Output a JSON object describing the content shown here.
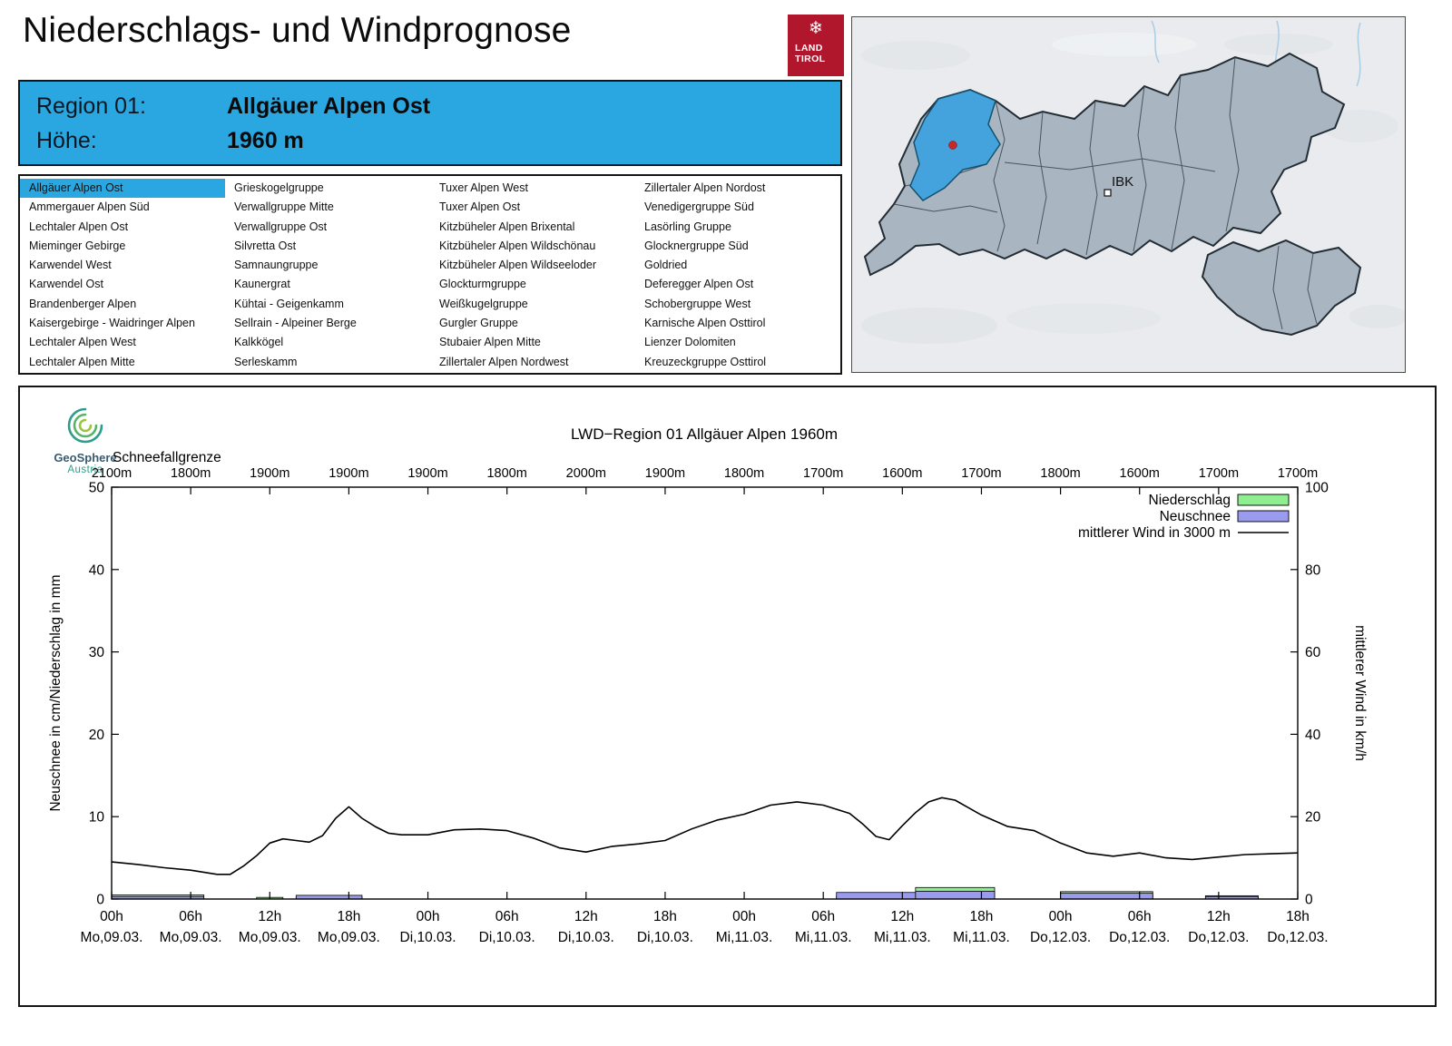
{
  "page": {
    "title": "Niederschlags- und Windprognose"
  },
  "logo": {
    "line1": "LAND",
    "line2": "TIROL"
  },
  "map": {
    "ibk_label": "IBK"
  },
  "region_header": {
    "region_label": "Region 01:",
    "region_value": "Allgäuer Alpen Ost",
    "hoehe_label": "Höhe:",
    "hoehe_value": "1960 m"
  },
  "region_list": {
    "selected": "Allgäuer Alpen Ost",
    "columns": [
      [
        "Allgäuer Alpen Ost",
        "Ammergauer Alpen Süd",
        "Lechtaler Alpen Ost",
        "Mieminger Gebirge",
        "Karwendel West",
        "Karwendel Ost",
        "Brandenberger Alpen",
        "Kaisergebirge - Waidringer Alpen",
        "Lechtaler Alpen West",
        "Lechtaler Alpen Mitte"
      ],
      [
        "Grieskogelgruppe",
        "Verwallgruppe Mitte",
        "Verwallgruppe Ost",
        "Silvretta Ost",
        "Samnaungruppe",
        "Kaunergrat",
        "Kühtai - Geigenkamm",
        "Sellrain - Alpeiner Berge",
        "Kalkkögel",
        "Serleskamm"
      ],
      [
        "Tuxer Alpen West",
        "Tuxer Alpen Ost",
        "Kitzbüheler Alpen Brixental",
        "Kitzbüheler Alpen Wildschönau",
        "Kitzbüheler Alpen Wildseeloder",
        "Glockturmgruppe",
        "Weißkugelgruppe",
        "Gurgler Gruppe",
        "Stubaier Alpen Mitte",
        "Zillertaler Alpen Nordwest"
      ],
      [
        "Zillertaler Alpen Nordost",
        "Venedigergruppe Süd",
        "Lasörling Gruppe",
        "Glocknergruppe Süd",
        "Goldried",
        "Deferegger Alpen Ost",
        "Schobergruppe West",
        "Karnische Alpen Osttirol",
        "Lienzer Dolomiten",
        "Kreuzeckgruppe Osttirol"
      ]
    ]
  },
  "geosphere": {
    "name": "GeoSphere",
    "country": "Austria"
  },
  "chart_data": {
    "type": "bar+line",
    "title": "LWD−Region 01 Allgäuer Alpen 1960m",
    "snowline_label": "Schneefallgrenze",
    "snowline_values": [
      "2100m",
      "1800m",
      "1900m",
      "1900m",
      "1900m",
      "1800m",
      "2000m",
      "1900m",
      "1800m",
      "1700m",
      "1600m",
      "1700m",
      "1800m",
      "1600m",
      "1700m",
      "1700m"
    ],
    "ylabel_left": "Neuschnee in cm/Niederschlag in mm",
    "ylabel_right": "mittlerer Wind in km/h",
    "ylim_left": [
      0,
      50
    ],
    "ylim_right": [
      0,
      100
    ],
    "yticks_left": [
      0,
      10,
      20,
      30,
      40,
      50
    ],
    "yticks_right": [
      0,
      20,
      40,
      60,
      80,
      100
    ],
    "x_range_hours": [
      0,
      90
    ],
    "xticks": [
      {
        "hour": 0,
        "time": "00h",
        "date": "Mo,09.03."
      },
      {
        "hour": 6,
        "time": "06h",
        "date": "Mo,09.03."
      },
      {
        "hour": 12,
        "time": "12h",
        "date": "Mo,09.03."
      },
      {
        "hour": 18,
        "time": "18h",
        "date": "Mo,09.03."
      },
      {
        "hour": 24,
        "time": "00h",
        "date": "Di,10.03."
      },
      {
        "hour": 30,
        "time": "06h",
        "date": "Di,10.03."
      },
      {
        "hour": 36,
        "time": "12h",
        "date": "Di,10.03."
      },
      {
        "hour": 42,
        "time": "18h",
        "date": "Di,10.03."
      },
      {
        "hour": 48,
        "time": "00h",
        "date": "Mi,11.03."
      },
      {
        "hour": 54,
        "time": "06h",
        "date": "Mi,11.03."
      },
      {
        "hour": 60,
        "time": "12h",
        "date": "Mi,11.03."
      },
      {
        "hour": 66,
        "time": "18h",
        "date": "Mi,11.03."
      },
      {
        "hour": 72,
        "time": "00h",
        "date": "Do,12.03."
      },
      {
        "hour": 78,
        "time": "06h",
        "date": "Do,12.03."
      },
      {
        "hour": 84,
        "time": "12h",
        "date": "Do,12.03."
      },
      {
        "hour": 90,
        "time": "18h",
        "date": "Do,12.03."
      }
    ],
    "legend": [
      {
        "label": "Niederschlag",
        "type": "box",
        "color": "#8fee8f"
      },
      {
        "label": "Neuschnee",
        "type": "box",
        "color": "#9a9aee"
      },
      {
        "label": "mittlerer Wind in 3000 m",
        "type": "line",
        "color": "#000000"
      }
    ],
    "series": [
      {
        "name": "Niederschlag",
        "unit": "mm",
        "axis": "left",
        "style": "bar",
        "segments": [
          {
            "from": 0,
            "to": 7,
            "value": 0.5
          },
          {
            "from": 11,
            "to": 13,
            "value": 0.2
          },
          {
            "from": 14,
            "to": 19,
            "value": 0.25
          },
          {
            "from": 55,
            "to": 61,
            "value": 0.3
          },
          {
            "from": 61,
            "to": 67,
            "value": 1.4
          },
          {
            "from": 72,
            "to": 79,
            "value": 0.9
          },
          {
            "from": 83,
            "to": 87,
            "value": 0.4
          }
        ]
      },
      {
        "name": "Neuschnee",
        "unit": "cm",
        "axis": "left",
        "style": "bar",
        "segments": [
          {
            "from": 0,
            "to": 7,
            "value": 0.3
          },
          {
            "from": 14,
            "to": 19,
            "value": 0.45
          },
          {
            "from": 55,
            "to": 61,
            "value": 0.8
          },
          {
            "from": 61,
            "to": 67,
            "value": 0.95
          },
          {
            "from": 72,
            "to": 79,
            "value": 0.7
          },
          {
            "from": 83,
            "to": 87,
            "value": 0.3
          }
        ]
      },
      {
        "name": "mittlerer Wind in 3000 m",
        "unit": "km/h",
        "axis": "right",
        "style": "line",
        "points": [
          [
            0,
            9.0
          ],
          [
            2,
            8.4
          ],
          [
            4,
            7.6
          ],
          [
            6,
            7.0
          ],
          [
            8,
            6.0
          ],
          [
            9,
            6.0
          ],
          [
            10,
            8.0
          ],
          [
            11,
            10.5
          ],
          [
            12,
            13.6
          ],
          [
            13,
            14.6
          ],
          [
            14,
            14.2
          ],
          [
            15,
            13.8
          ],
          [
            16,
            15.4
          ],
          [
            17,
            19.6
          ],
          [
            18,
            22.4
          ],
          [
            19,
            19.6
          ],
          [
            20,
            17.6
          ],
          [
            21,
            16.0
          ],
          [
            22,
            15.6
          ],
          [
            24,
            15.6
          ],
          [
            26,
            16.8
          ],
          [
            28,
            17.0
          ],
          [
            30,
            16.6
          ],
          [
            32,
            14.8
          ],
          [
            34,
            12.4
          ],
          [
            36,
            11.4
          ],
          [
            38,
            12.8
          ],
          [
            40,
            13.4
          ],
          [
            42,
            14.2
          ],
          [
            44,
            17.0
          ],
          [
            46,
            19.2
          ],
          [
            48,
            20.6
          ],
          [
            50,
            22.8
          ],
          [
            52,
            23.6
          ],
          [
            54,
            22.8
          ],
          [
            56,
            20.8
          ],
          [
            57,
            18.2
          ],
          [
            58,
            15.2
          ],
          [
            59,
            14.4
          ],
          [
            60,
            17.8
          ],
          [
            61,
            21.0
          ],
          [
            62,
            23.6
          ],
          [
            63,
            24.6
          ],
          [
            64,
            24.0
          ],
          [
            65,
            22.2
          ],
          [
            66,
            20.4
          ],
          [
            68,
            17.6
          ],
          [
            70,
            16.6
          ],
          [
            72,
            13.6
          ],
          [
            74,
            11.2
          ],
          [
            76,
            10.4
          ],
          [
            78,
            11.2
          ],
          [
            80,
            10.0
          ],
          [
            82,
            9.6
          ],
          [
            84,
            10.2
          ],
          [
            86,
            10.8
          ],
          [
            88,
            11.0
          ],
          [
            90,
            11.2
          ]
        ]
      }
    ]
  }
}
